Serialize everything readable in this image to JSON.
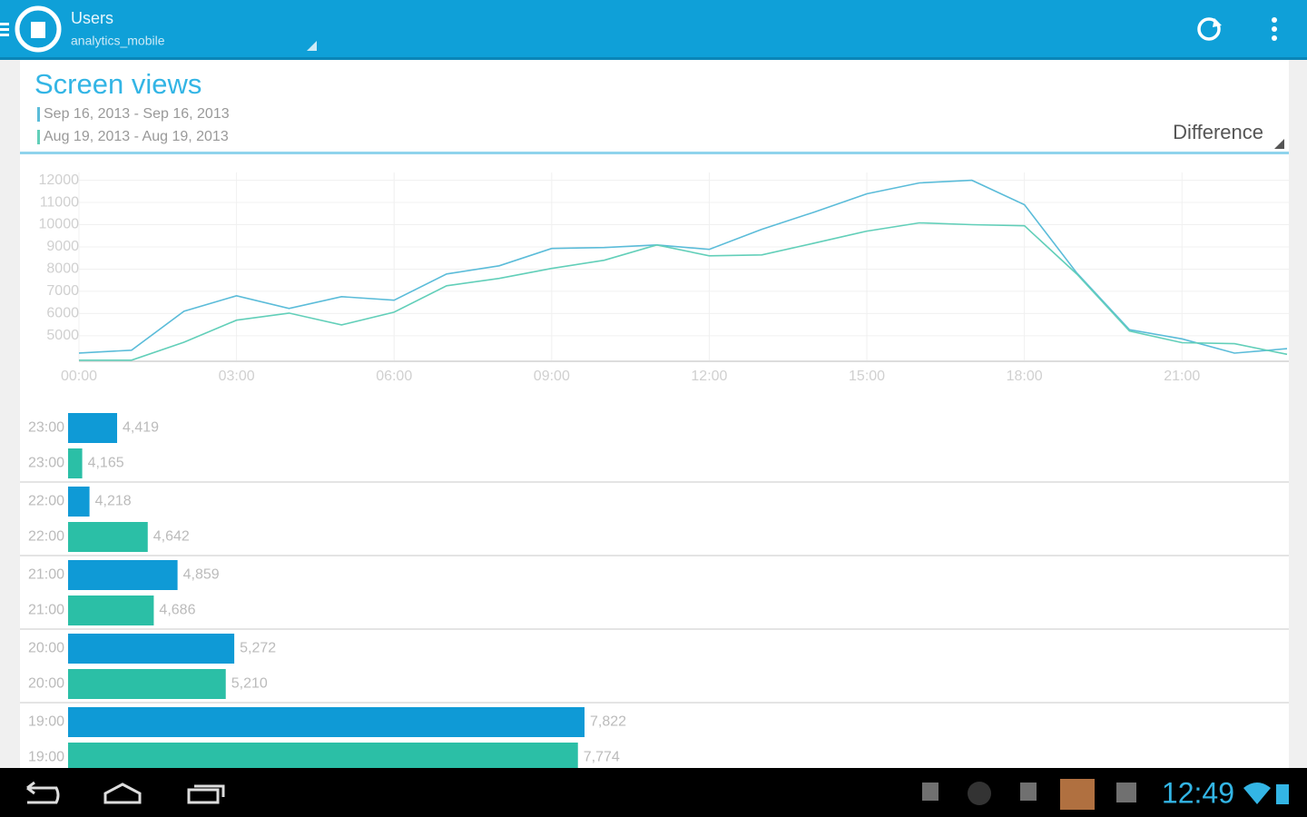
{
  "app_bar": {
    "title": "Users",
    "subtitle": "analytics_mobile"
  },
  "compare_mode": "Difference",
  "status_bar": {
    "time": "12:49"
  },
  "chart_data": [
    {
      "type": "line",
      "title": "Screen views",
      "x": [
        0,
        1,
        2,
        3,
        4,
        5,
        6,
        7,
        8,
        9,
        10,
        11,
        12,
        13,
        14,
        15,
        16,
        17,
        18,
        19,
        20,
        21,
        22,
        23
      ],
      "xlim": [
        0,
        23
      ],
      "xticks": [
        {
          "value": 0,
          "label": "00:00"
        },
        {
          "value": 3,
          "label": "03:00"
        },
        {
          "value": 6,
          "label": "06:00"
        },
        {
          "value": 9,
          "label": "09:00"
        },
        {
          "value": 12,
          "label": "12:00"
        },
        {
          "value": 15,
          "label": "15:00"
        },
        {
          "value": 18,
          "label": "18:00"
        },
        {
          "value": 21,
          "label": "21:00"
        }
      ],
      "ylim": [
        3850,
        12350
      ],
      "yticks": [
        5000,
        6000,
        7000,
        8000,
        9000,
        10000,
        11000,
        12000
      ],
      "grid": true,
      "series": [
        {
          "name": "Sep 16, 2013 - Sep 16, 2013",
          "color": "#5bbcd9",
          "values": [
            4220,
            4350,
            6100,
            6800,
            6230,
            6760,
            6600,
            7780,
            8150,
            8930,
            8970,
            9090,
            8890,
            9790,
            10570,
            11390,
            11880,
            12000,
            10900,
            7822,
            5272,
            4859,
            4218,
            4419
          ]
        },
        {
          "name": "Aug 19, 2013 - Aug 19, 2013",
          "color": "#62cfb9",
          "values": [
            3900,
            3900,
            4710,
            5700,
            6020,
            5490,
            6060,
            7250,
            7580,
            8030,
            8400,
            9090,
            8600,
            8640,
            9170,
            9710,
            10080,
            10000,
            9950,
            7774,
            5210,
            4686,
            4642,
            4165
          ]
        }
      ]
    },
    {
      "type": "hbar",
      "categories": [
        "23:00",
        "22:00",
        "21:00",
        "20:00",
        "19:00"
      ],
      "xlim": [
        4062,
        12950
      ],
      "series": [
        {
          "color": "#0f9ad6",
          "values": [
            4419,
            4218,
            4859,
            5272,
            7822
          ],
          "value_labels": [
            "4,419",
            "4,218",
            "4,859",
            "5,272",
            "7,822"
          ]
        },
        {
          "color": "#2bbfa6",
          "values": [
            4165,
            4642,
            4686,
            5210,
            7774
          ],
          "value_labels": [
            "4,165",
            "4,642",
            "4,686",
            "5,210",
            "7,774"
          ]
        }
      ]
    }
  ]
}
